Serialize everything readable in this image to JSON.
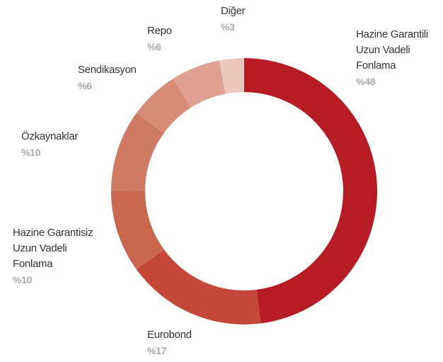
{
  "chart_data": {
    "type": "donut",
    "categories": [
      "Hazine Garantili\nUzun Vadeli\nFonlama",
      "Eurobond",
      "Hazine Garantisiz\nUzun Vadeli\nFonlama",
      "Özkaynaklar",
      "Sendikasyon",
      "Repo",
      "Diğer"
    ],
    "values": [
      48,
      17,
      10,
      10,
      6,
      6,
      3
    ],
    "value_labels": [
      "%48",
      "%17",
      "%10",
      "%10",
      "%6",
      "%6",
      "%3"
    ],
    "colors": [
      "#b71c24",
      "#c4473a",
      "#c96650",
      "#cf7a63",
      "#d68c77",
      "#e0a090",
      "#ecc8bc"
    ]
  }
}
